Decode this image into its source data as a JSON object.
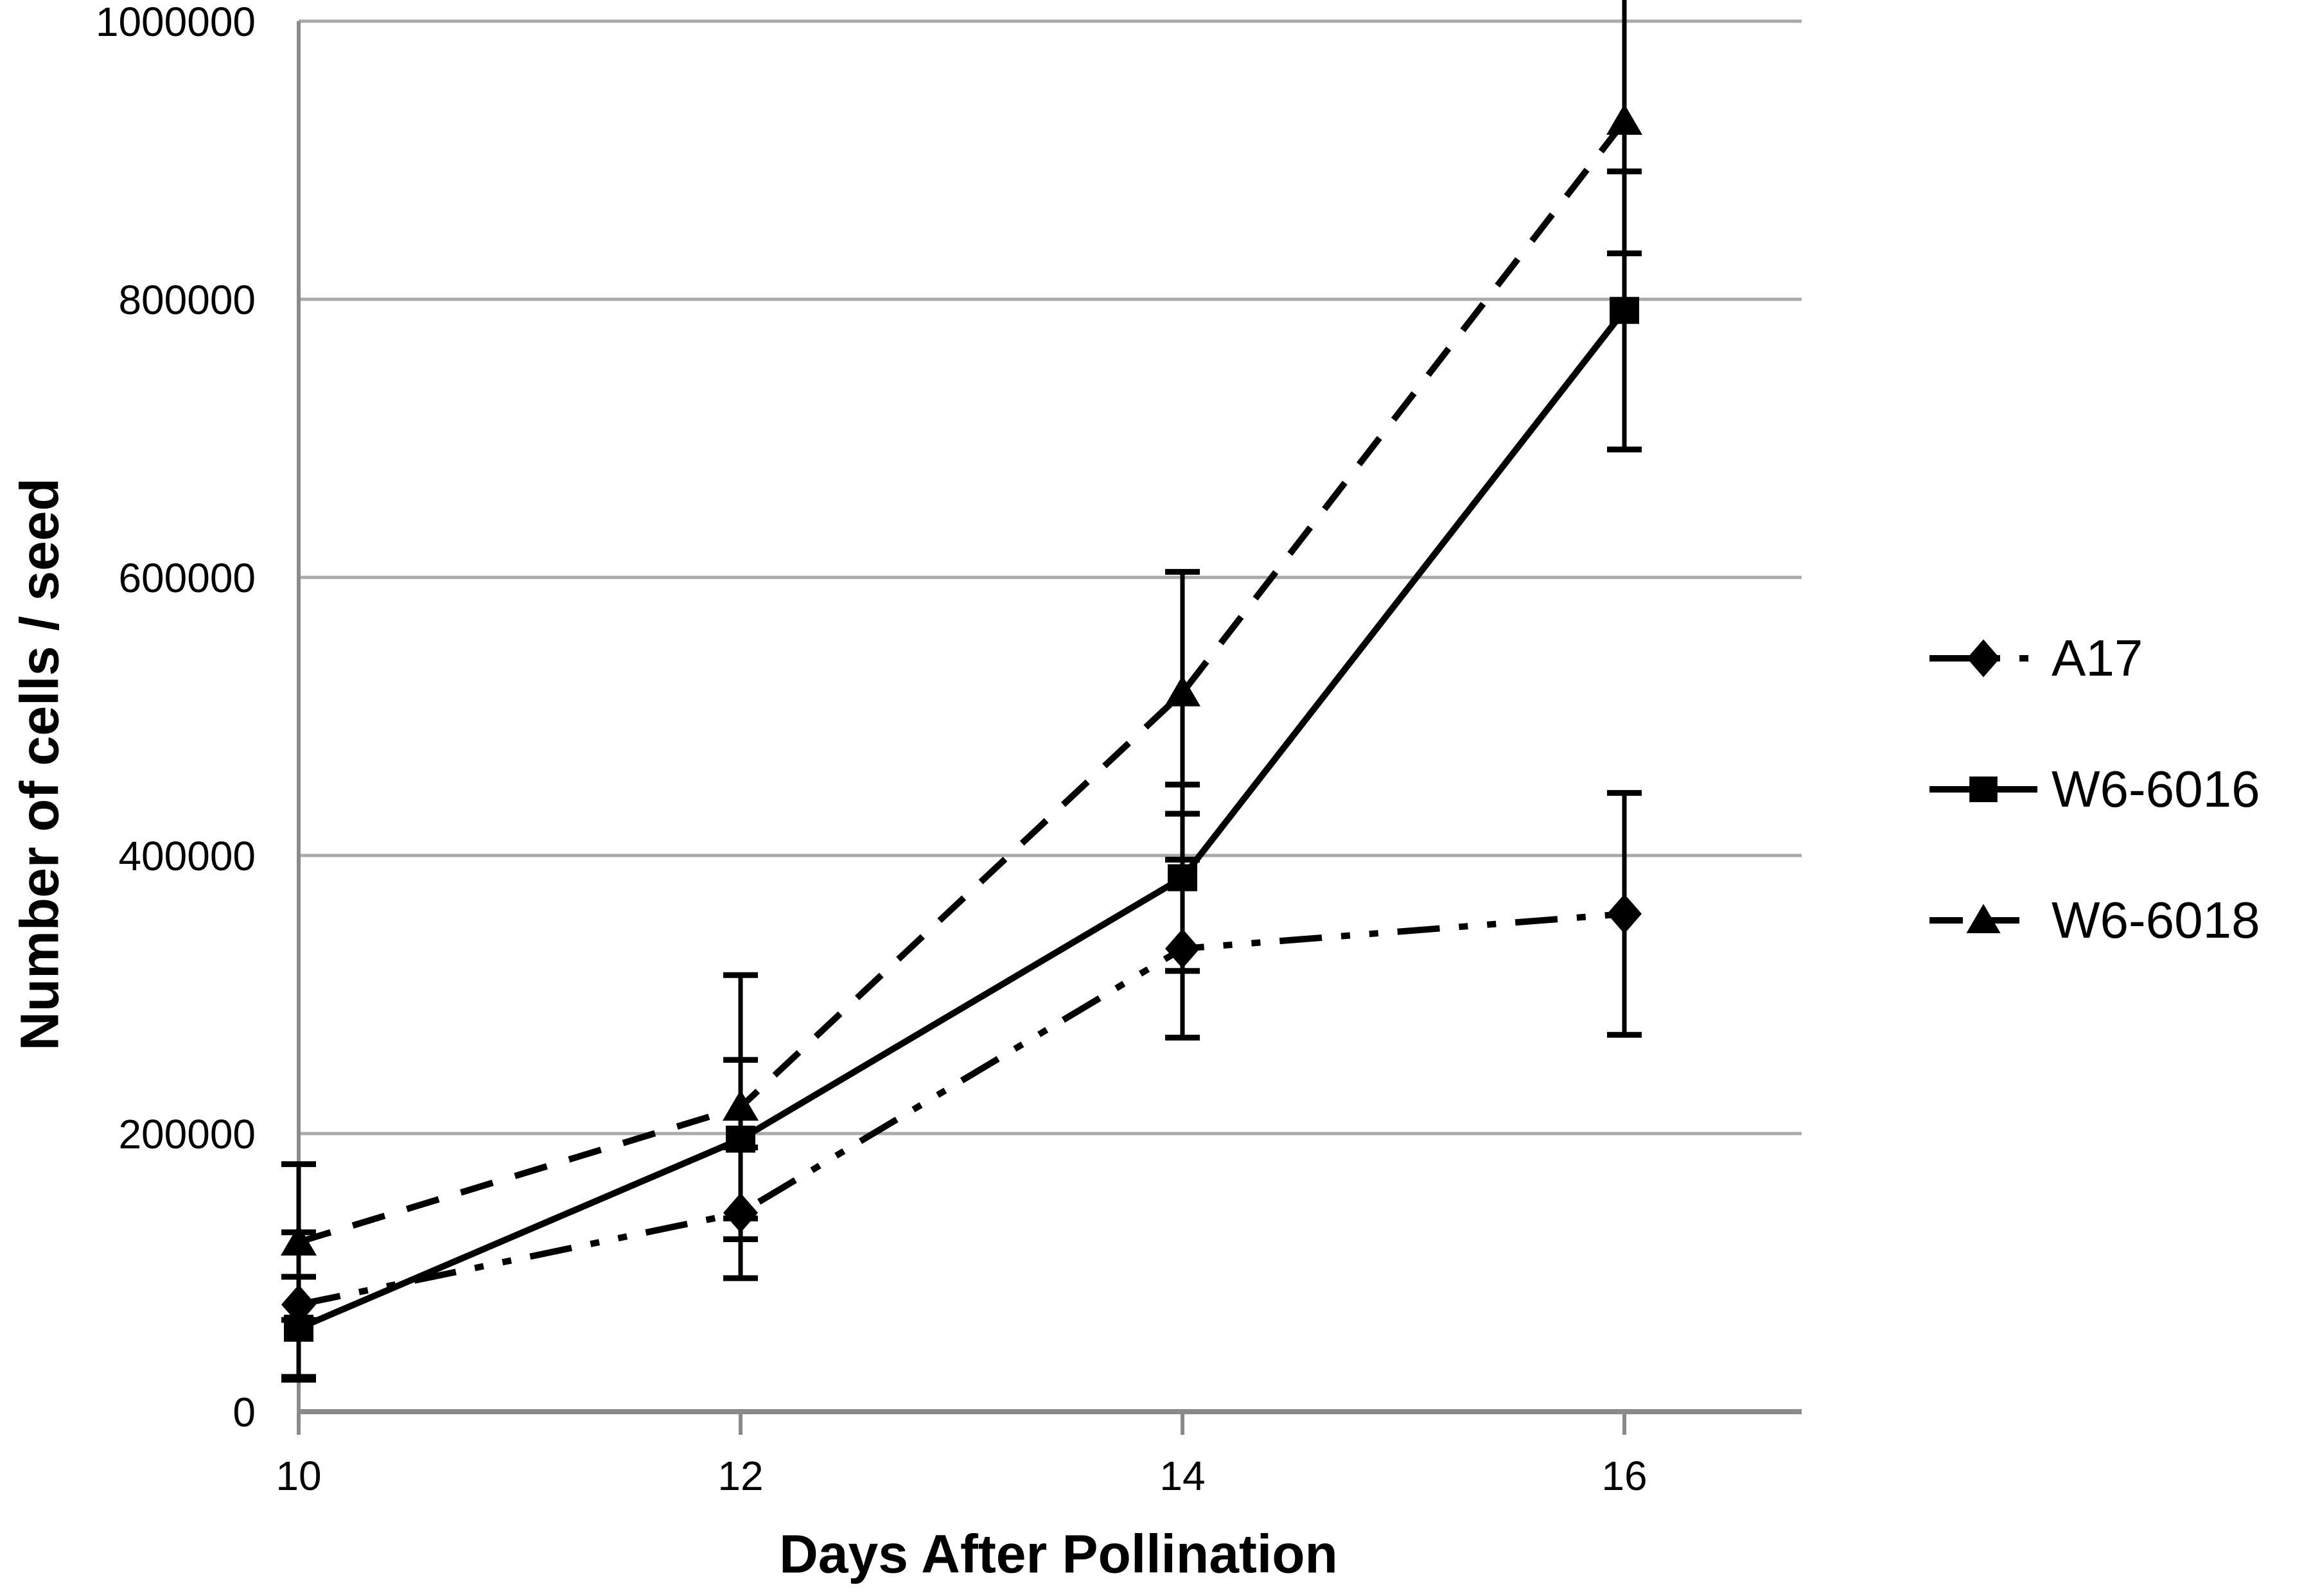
{
  "chart_data": {
    "type": "line",
    "title": "",
    "xlabel": "Days After Pollination",
    "ylabel": "Number of cells / seed",
    "x": [
      10,
      12,
      14,
      16
    ],
    "x_tick_labels": [
      "10",
      "12",
      "14",
      "16"
    ],
    "y_ticks": [
      0,
      200000,
      400000,
      600000,
      800000,
      1000000
    ],
    "y_tick_labels": [
      "0",
      "200000",
      "400000",
      "600000",
      "800000",
      "1000000"
    ],
    "ylim": [
      0,
      1000000
    ],
    "xlim": [
      10,
      16.8
    ],
    "grid": "horizontal",
    "legend_position": "right",
    "error_bars": true,
    "series": [
      {
        "name": "A17",
        "marker": "diamond",
        "line_style": "dash-dot-dot",
        "values": [
          77000,
          143000,
          333000,
          358000
        ],
        "errors": [
          52000,
          47000,
          64000,
          87000
        ]
      },
      {
        "name": "W6-6016",
        "marker": "square",
        "line_style": "solid",
        "values": [
          60000,
          196000,
          384000,
          792000
        ],
        "errors": [
          37000,
          57000,
          67000,
          100000
        ]
      },
      {
        "name": "W6-6018",
        "marker": "triangle",
        "line_style": "dashed",
        "values": [
          122000,
          219000,
          517000,
          928000
        ],
        "errors": [
          56000,
          95000,
          87000,
          95000
        ]
      }
    ]
  },
  "colors": {
    "series": "#000000",
    "gridline": "#a9a9a9",
    "axis": "#8a8a8a",
    "text": "#000000",
    "background": "#ffffff"
  }
}
